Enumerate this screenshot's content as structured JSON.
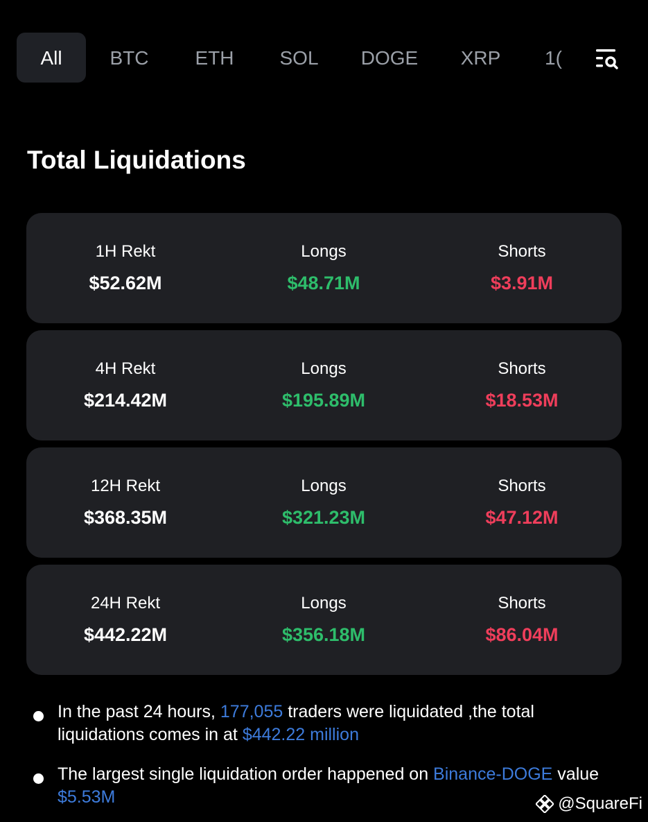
{
  "tabs": [
    {
      "label": "All",
      "active": true
    },
    {
      "label": "BTC",
      "active": false
    },
    {
      "label": "ETH",
      "active": false
    },
    {
      "label": "SOL",
      "active": false
    },
    {
      "label": "DOGE",
      "active": false
    },
    {
      "label": "XRP",
      "active": false
    },
    {
      "label": "1(",
      "active": false
    }
  ],
  "filter_icon": "filter-search-icon",
  "heading": "Total Liquidations",
  "cards": [
    {
      "period": "1H Rekt",
      "total": "$52.62M",
      "longs_label": "Longs",
      "longs": "$48.71M",
      "shorts_label": "Shorts",
      "shorts": "$3.91M"
    },
    {
      "period": "4H Rekt",
      "total": "$214.42M",
      "longs_label": "Longs",
      "longs": "$195.89M",
      "shorts_label": "Shorts",
      "shorts": "$18.53M"
    },
    {
      "period": "12H Rekt",
      "total": "$368.35M",
      "longs_label": "Longs",
      "longs": "$321.23M",
      "shorts_label": "Shorts",
      "shorts": "$47.12M"
    },
    {
      "period": "24H Rekt",
      "total": "$442.22M",
      "longs_label": "Longs",
      "longs": "$356.18M",
      "shorts_label": "Shorts",
      "shorts": "$86.04M"
    }
  ],
  "summary": {
    "line1_part1": "In the past 24 hours, ",
    "line1_traders": "177,055",
    "line1_part2": " traders were liquidated ,the total liquidations comes in at ",
    "line1_amount": "$442.22 million",
    "line2_part1": "The largest single liquidation order happened on ",
    "line2_exchange": "Binance-DOGE",
    "line2_part2": " value ",
    "line2_value": "$5.53M"
  },
  "watermark": "@SquareFi",
  "colors": {
    "background": "#000000",
    "card": "#1f2024",
    "longs": "#2ebd6b",
    "shorts": "#ef3e5b",
    "highlight": "#3d7bdb"
  }
}
